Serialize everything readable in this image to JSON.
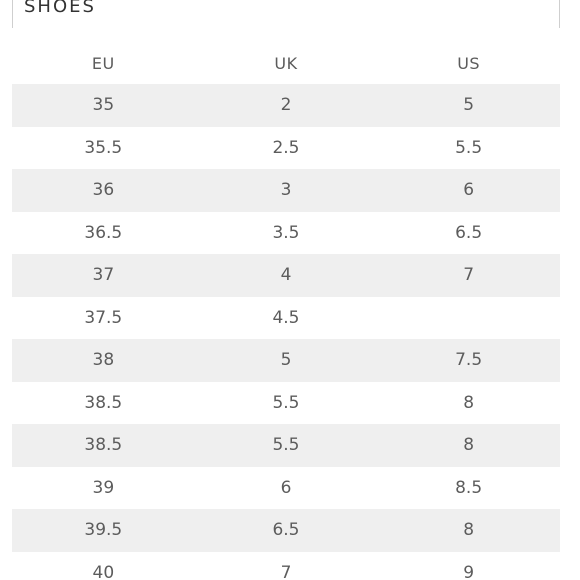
{
  "section": {
    "title": "SHOES"
  },
  "table": {
    "headers": [
      "EU",
      "UK",
      "US"
    ],
    "rows": [
      [
        "35",
        "2",
        "5"
      ],
      [
        "35.5",
        "2.5",
        "5.5"
      ],
      [
        "36",
        "3",
        "6"
      ],
      [
        "36.5",
        "3.5",
        "6.5"
      ],
      [
        "37",
        "4",
        "7"
      ],
      [
        "37.5",
        "4.5",
        ""
      ],
      [
        "38",
        "5",
        "7.5"
      ],
      [
        "38.5",
        "5.5",
        "8"
      ],
      [
        "38.5",
        "5.5",
        "8"
      ],
      [
        "39",
        "6",
        "8.5"
      ],
      [
        "39.5",
        "6.5",
        "8"
      ],
      [
        "40",
        "7",
        "9"
      ]
    ]
  }
}
